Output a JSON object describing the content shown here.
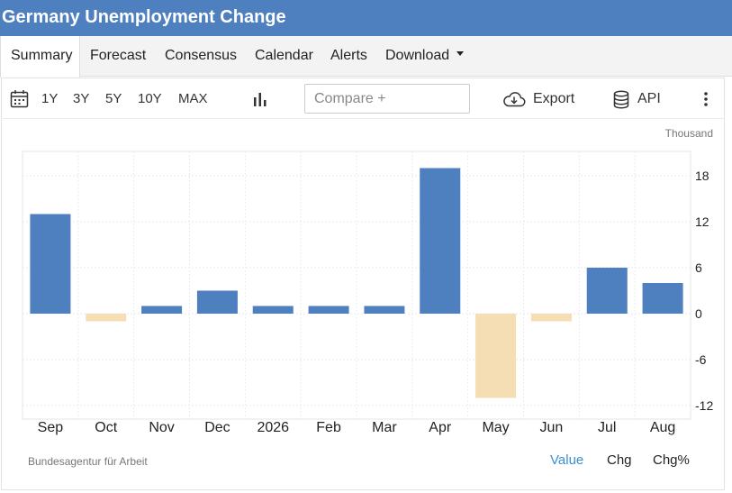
{
  "header": {
    "title": "Germany Unemployment Change"
  },
  "tabs": [
    {
      "label": "Summary",
      "active": true
    },
    {
      "label": "Forecast"
    },
    {
      "label": "Consensus"
    },
    {
      "label": "Calendar"
    },
    {
      "label": "Alerts"
    },
    {
      "label": "Download",
      "has_dropdown": true
    }
  ],
  "toolbar": {
    "ranges": [
      "1Y",
      "3Y",
      "5Y",
      "10Y",
      "MAX"
    ],
    "compare_placeholder": "Compare +",
    "export_label": "Export",
    "api_label": "API",
    "icons": [
      "calendar-icon",
      "bar-chart-icon",
      "cloud-download-icon",
      "database-icon",
      "more-vertical-icon"
    ]
  },
  "footer": {
    "source": "Bundesagentur für Arbeit",
    "modes": [
      {
        "label": "Value",
        "active": true
      },
      {
        "label": "Chg"
      },
      {
        "label": "Chg%"
      }
    ]
  },
  "colors": {
    "header": "#4e7fbf",
    "positive": "#4e7fbf",
    "negative": "#f5deb3",
    "active_mode": "#3a8fd0"
  },
  "chart_data": {
    "type": "bar",
    "unit": "Thousand",
    "categories": [
      "Sep",
      "Oct",
      "Nov",
      "Dec",
      "2026",
      "Feb",
      "Mar",
      "Apr",
      "May",
      "Jun",
      "Jul",
      "Aug"
    ],
    "values": [
      13,
      -1,
      1,
      3,
      1,
      1,
      1,
      19,
      -11,
      -1,
      6,
      4
    ],
    "yticks": [
      18,
      12,
      6,
      0,
      -6,
      -12
    ],
    "ylim": [
      -14,
      21
    ],
    "y_axis_position": "right",
    "grid": true
  }
}
